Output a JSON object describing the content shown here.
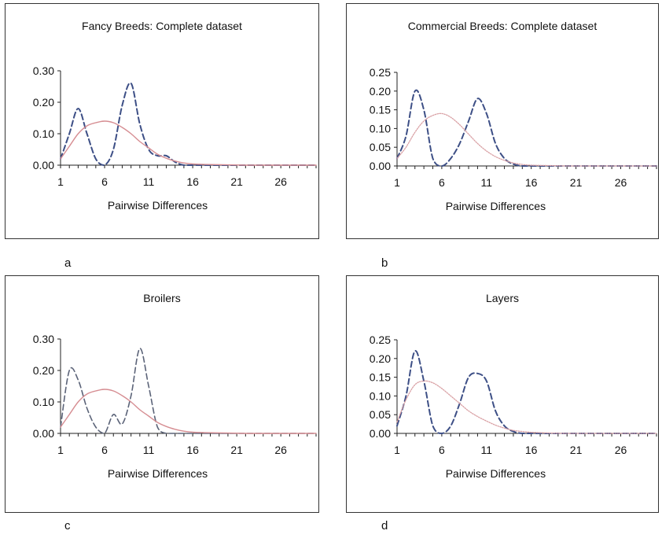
{
  "chart_data": [
    {
      "type": "line",
      "panel_label": "a",
      "title": "Fancy Breeds: Complete dataset",
      "xlabel": "Pairwise Differences",
      "ylabel": "",
      "xlim": [
        1,
        30
      ],
      "ylim": [
        0,
        0.3
      ],
      "x_ticks": [
        "1",
        "6",
        "11",
        "16",
        "21",
        "26"
      ],
      "y_ticks": [
        "0.00",
        "0.10",
        "0.20",
        "0.30"
      ],
      "grid": false,
      "series": [
        {
          "style": "dashed-blue",
          "x": [
            1,
            2,
            3,
            4,
            5,
            6,
            7,
            8,
            9,
            10,
            11,
            12,
            13,
            14,
            15,
            16,
            18,
            20,
            22,
            24,
            26,
            28,
            30
          ],
          "values": [
            0.02,
            0.1,
            0.18,
            0.1,
            0.02,
            0.0,
            0.05,
            0.19,
            0.26,
            0.13,
            0.05,
            0.03,
            0.03,
            0.01,
            0.0,
            0.0,
            0.0,
            0.0,
            0.0,
            0.0,
            0.0,
            0.0,
            0.0
          ]
        },
        {
          "style": "solid-pink",
          "x": [
            1,
            2,
            3,
            4,
            5,
            6,
            7,
            8,
            9,
            10,
            11,
            12,
            13,
            14,
            15,
            16,
            18,
            20,
            22,
            24,
            26,
            28,
            30
          ],
          "values": [
            0.02,
            0.06,
            0.1,
            0.125,
            0.135,
            0.14,
            0.135,
            0.12,
            0.1,
            0.075,
            0.055,
            0.035,
            0.022,
            0.013,
            0.007,
            0.004,
            0.002,
            0.001,
            0.0,
            0.0,
            0.0,
            0.0,
            0.0
          ]
        }
      ]
    },
    {
      "type": "line",
      "panel_label": "b",
      "title": "Commercial Breeds: Complete dataset",
      "xlabel": "Pairwise Differences",
      "ylabel": "",
      "xlim": [
        1,
        30
      ],
      "ylim": [
        0,
        0.25
      ],
      "x_ticks": [
        "1",
        "6",
        "11",
        "16",
        "21",
        "26"
      ],
      "y_ticks": [
        "0.00",
        "0.05",
        "0.10",
        "0.15",
        "0.20",
        "0.25"
      ],
      "grid": false,
      "series": [
        {
          "style": "dashed-blue",
          "x": [
            1,
            2,
            3,
            4,
            5,
            6,
            7,
            8,
            9,
            10,
            11,
            12,
            13,
            14,
            15,
            16,
            18,
            20,
            22,
            24,
            26,
            28,
            30
          ],
          "values": [
            0.02,
            0.08,
            0.2,
            0.15,
            0.02,
            0.0,
            0.02,
            0.06,
            0.12,
            0.18,
            0.14,
            0.06,
            0.02,
            0.005,
            0.0,
            0.0,
            0.0,
            0.0,
            0.0,
            0.0,
            0.0,
            0.0,
            0.0
          ]
        },
        {
          "style": "dotted-pink",
          "x": [
            1,
            2,
            3,
            4,
            5,
            6,
            7,
            8,
            9,
            10,
            11,
            12,
            13,
            14,
            15,
            16,
            18,
            20,
            22,
            24,
            26,
            28,
            30
          ],
          "values": [
            0.02,
            0.05,
            0.09,
            0.12,
            0.135,
            0.14,
            0.13,
            0.11,
            0.085,
            0.06,
            0.04,
            0.025,
            0.015,
            0.008,
            0.004,
            0.002,
            0.001,
            0.0,
            0.0,
            0.0,
            0.0,
            0.0,
            0.0
          ]
        }
      ]
    },
    {
      "type": "line",
      "panel_label": "c",
      "title": "Broilers",
      "xlabel": "Pairwise Differences",
      "ylabel": "",
      "xlim": [
        1,
        30
      ],
      "ylim": [
        0,
        0.3
      ],
      "x_ticks": [
        "1",
        "6",
        "11",
        "16",
        "21",
        "26"
      ],
      "y_ticks": [
        "0.00",
        "0.10",
        "0.20",
        "0.30"
      ],
      "grid": false,
      "series": [
        {
          "style": "dashed-grey",
          "x": [
            1,
            2,
            3,
            4,
            5,
            6,
            7,
            8,
            9,
            10,
            11,
            12,
            13,
            14,
            15,
            16,
            18,
            20,
            22,
            24,
            26,
            28,
            30
          ],
          "values": [
            0.02,
            0.2,
            0.17,
            0.08,
            0.02,
            0.0,
            0.06,
            0.03,
            0.12,
            0.27,
            0.15,
            0.02,
            0.0,
            0.0,
            0.0,
            0.0,
            0.0,
            0.0,
            0.0,
            0.0,
            0.0,
            0.0,
            0.0
          ]
        },
        {
          "style": "solid-pink",
          "x": [
            1,
            2,
            3,
            4,
            5,
            6,
            7,
            8,
            9,
            10,
            11,
            12,
            13,
            14,
            15,
            16,
            18,
            20,
            22,
            24,
            26,
            28,
            30
          ],
          "values": [
            0.02,
            0.06,
            0.1,
            0.125,
            0.135,
            0.14,
            0.135,
            0.12,
            0.1,
            0.075,
            0.055,
            0.035,
            0.022,
            0.013,
            0.007,
            0.004,
            0.002,
            0.001,
            0.0,
            0.0,
            0.0,
            0.0,
            0.0
          ]
        }
      ]
    },
    {
      "type": "line",
      "panel_label": "d",
      "title": "Layers",
      "xlabel": "Pairwise Differences",
      "ylabel": "",
      "xlim": [
        1,
        30
      ],
      "ylim": [
        0,
        0.25
      ],
      "x_ticks": [
        "1",
        "6",
        "11",
        "16",
        "21",
        "26"
      ],
      "y_ticks": [
        "0.00",
        "0.05",
        "0.10",
        "0.15",
        "0.20",
        "0.25"
      ],
      "grid": false,
      "series": [
        {
          "style": "dashed-blue",
          "x": [
            1,
            2,
            3,
            4,
            5,
            6,
            7,
            8,
            9,
            10,
            11,
            12,
            13,
            14,
            15,
            16,
            18,
            20,
            22,
            24,
            26,
            28,
            30
          ],
          "values": [
            0.02,
            0.1,
            0.22,
            0.14,
            0.02,
            0.0,
            0.02,
            0.08,
            0.15,
            0.16,
            0.14,
            0.06,
            0.02,
            0.005,
            0.0,
            0.0,
            0.0,
            0.0,
            0.0,
            0.0,
            0.0,
            0.0,
            0.0
          ]
        },
        {
          "style": "dotted-pink",
          "x": [
            1,
            2,
            3,
            4,
            5,
            6,
            7,
            8,
            9,
            10,
            11,
            12,
            13,
            14,
            15,
            16,
            18,
            20,
            22,
            24,
            26,
            28,
            30
          ],
          "values": [
            0.03,
            0.09,
            0.13,
            0.14,
            0.135,
            0.12,
            0.1,
            0.08,
            0.06,
            0.045,
            0.033,
            0.022,
            0.014,
            0.008,
            0.005,
            0.003,
            0.001,
            0.0,
            0.0,
            0.0,
            0.0,
            0.0,
            0.0
          ]
        }
      ]
    }
  ],
  "colors": {
    "dashed-blue": "#3d4f86",
    "dashed-grey": "#5b6378",
    "solid-pink": "#d68d92",
    "dotted-pink": "#d9a0a4",
    "axis": "#222222"
  }
}
